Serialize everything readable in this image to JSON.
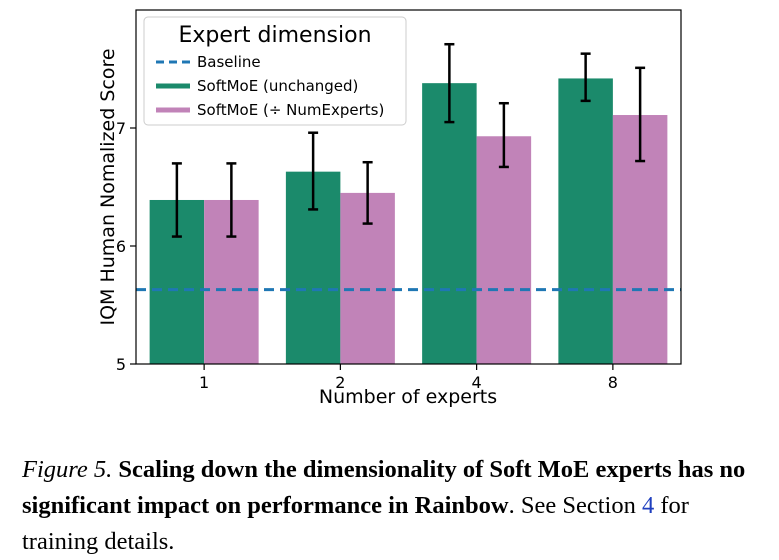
{
  "chart_data": {
    "type": "bar",
    "title": "",
    "xlabel": "Number of experts",
    "ylabel": "IQM Human Nomalized Score",
    "categories": [
      "1",
      "2",
      "4",
      "8"
    ],
    "ylim": [
      5.0,
      8.0
    ],
    "yticks": [
      "5",
      "6",
      "7"
    ],
    "grid": false,
    "legend": {
      "title": "Expert dimension",
      "placement": "top-left",
      "entries": [
        "Baseline",
        "SoftMoE (unchanged)",
        "SoftMoE (÷ NumExperts)"
      ]
    },
    "baseline": {
      "name": "Baseline",
      "value": 5.63,
      "color": "#1f77b4",
      "style": "dashed"
    },
    "series": [
      {
        "name": "SoftMoE (unchanged)",
        "color": "#1b8a6b",
        "values": [
          6.39,
          6.63,
          7.38,
          7.42
        ],
        "err_low": [
          6.08,
          6.31,
          7.05,
          7.23
        ],
        "err_high": [
          6.7,
          6.96,
          7.71,
          7.63
        ]
      },
      {
        "name": "SoftMoE (÷ NumExperts)",
        "color": "#c183b8",
        "values": [
          6.39,
          6.45,
          6.93,
          7.11
        ],
        "err_low": [
          6.08,
          6.19,
          6.67,
          6.72
        ],
        "err_high": [
          6.7,
          6.71,
          7.21,
          7.51
        ]
      }
    ]
  },
  "caption": {
    "figure_label": "Figure 5.",
    "bold_text": "Scaling down the dimensionality of Soft MoE experts has no significant impact on performance in Rainbow",
    "text_before_link": ". See Section ",
    "link_text": "4",
    "text_after_link": " for training details."
  }
}
